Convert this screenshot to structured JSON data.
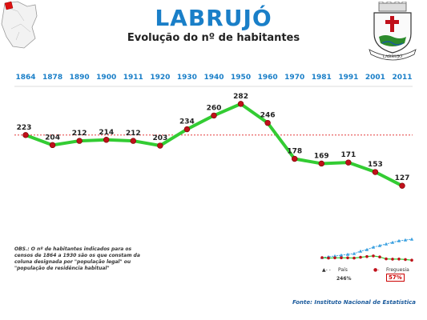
{
  "header": {
    "title": "LABRUJÓ",
    "subtitle": "Evolução do nº de habitantes",
    "crest_caption": "LABRUJÓ"
  },
  "chart_data": {
    "type": "line",
    "categories": [
      "1864",
      "1878",
      "1890",
      "1900",
      "1911",
      "1920",
      "1930",
      "1940",
      "1950",
      "1960",
      "1970",
      "1981",
      "1991",
      "2001",
      "2011"
    ],
    "values": [
      223,
      204,
      212,
      214,
      212,
      203,
      234,
      260,
      282,
      246,
      178,
      169,
      171,
      153,
      127
    ],
    "ylim": [
      100,
      300
    ],
    "reference_line": 223,
    "colors": {
      "line": "#33cc33",
      "marker": "#c0101a",
      "reference": "#e02020",
      "years": "#1a7fc8"
    }
  },
  "mini_chart": {
    "legend": {
      "country": "País",
      "parish": "Freguesia"
    },
    "country_pct": "246%",
    "parish_pct": "57%",
    "colors": {
      "country": "#3aa0e0",
      "parish": "#c0101a",
      "parish_line": "#33cc33"
    }
  },
  "footer": {
    "note": "OBS.: O nº de habitantes indicados para os censos de 1864 a 1930 são os que constam da coluna designada por \"população legal\" ou \"população de residência habitual\"",
    "source": "Fonte: Instituto Nacional de Estatística"
  }
}
